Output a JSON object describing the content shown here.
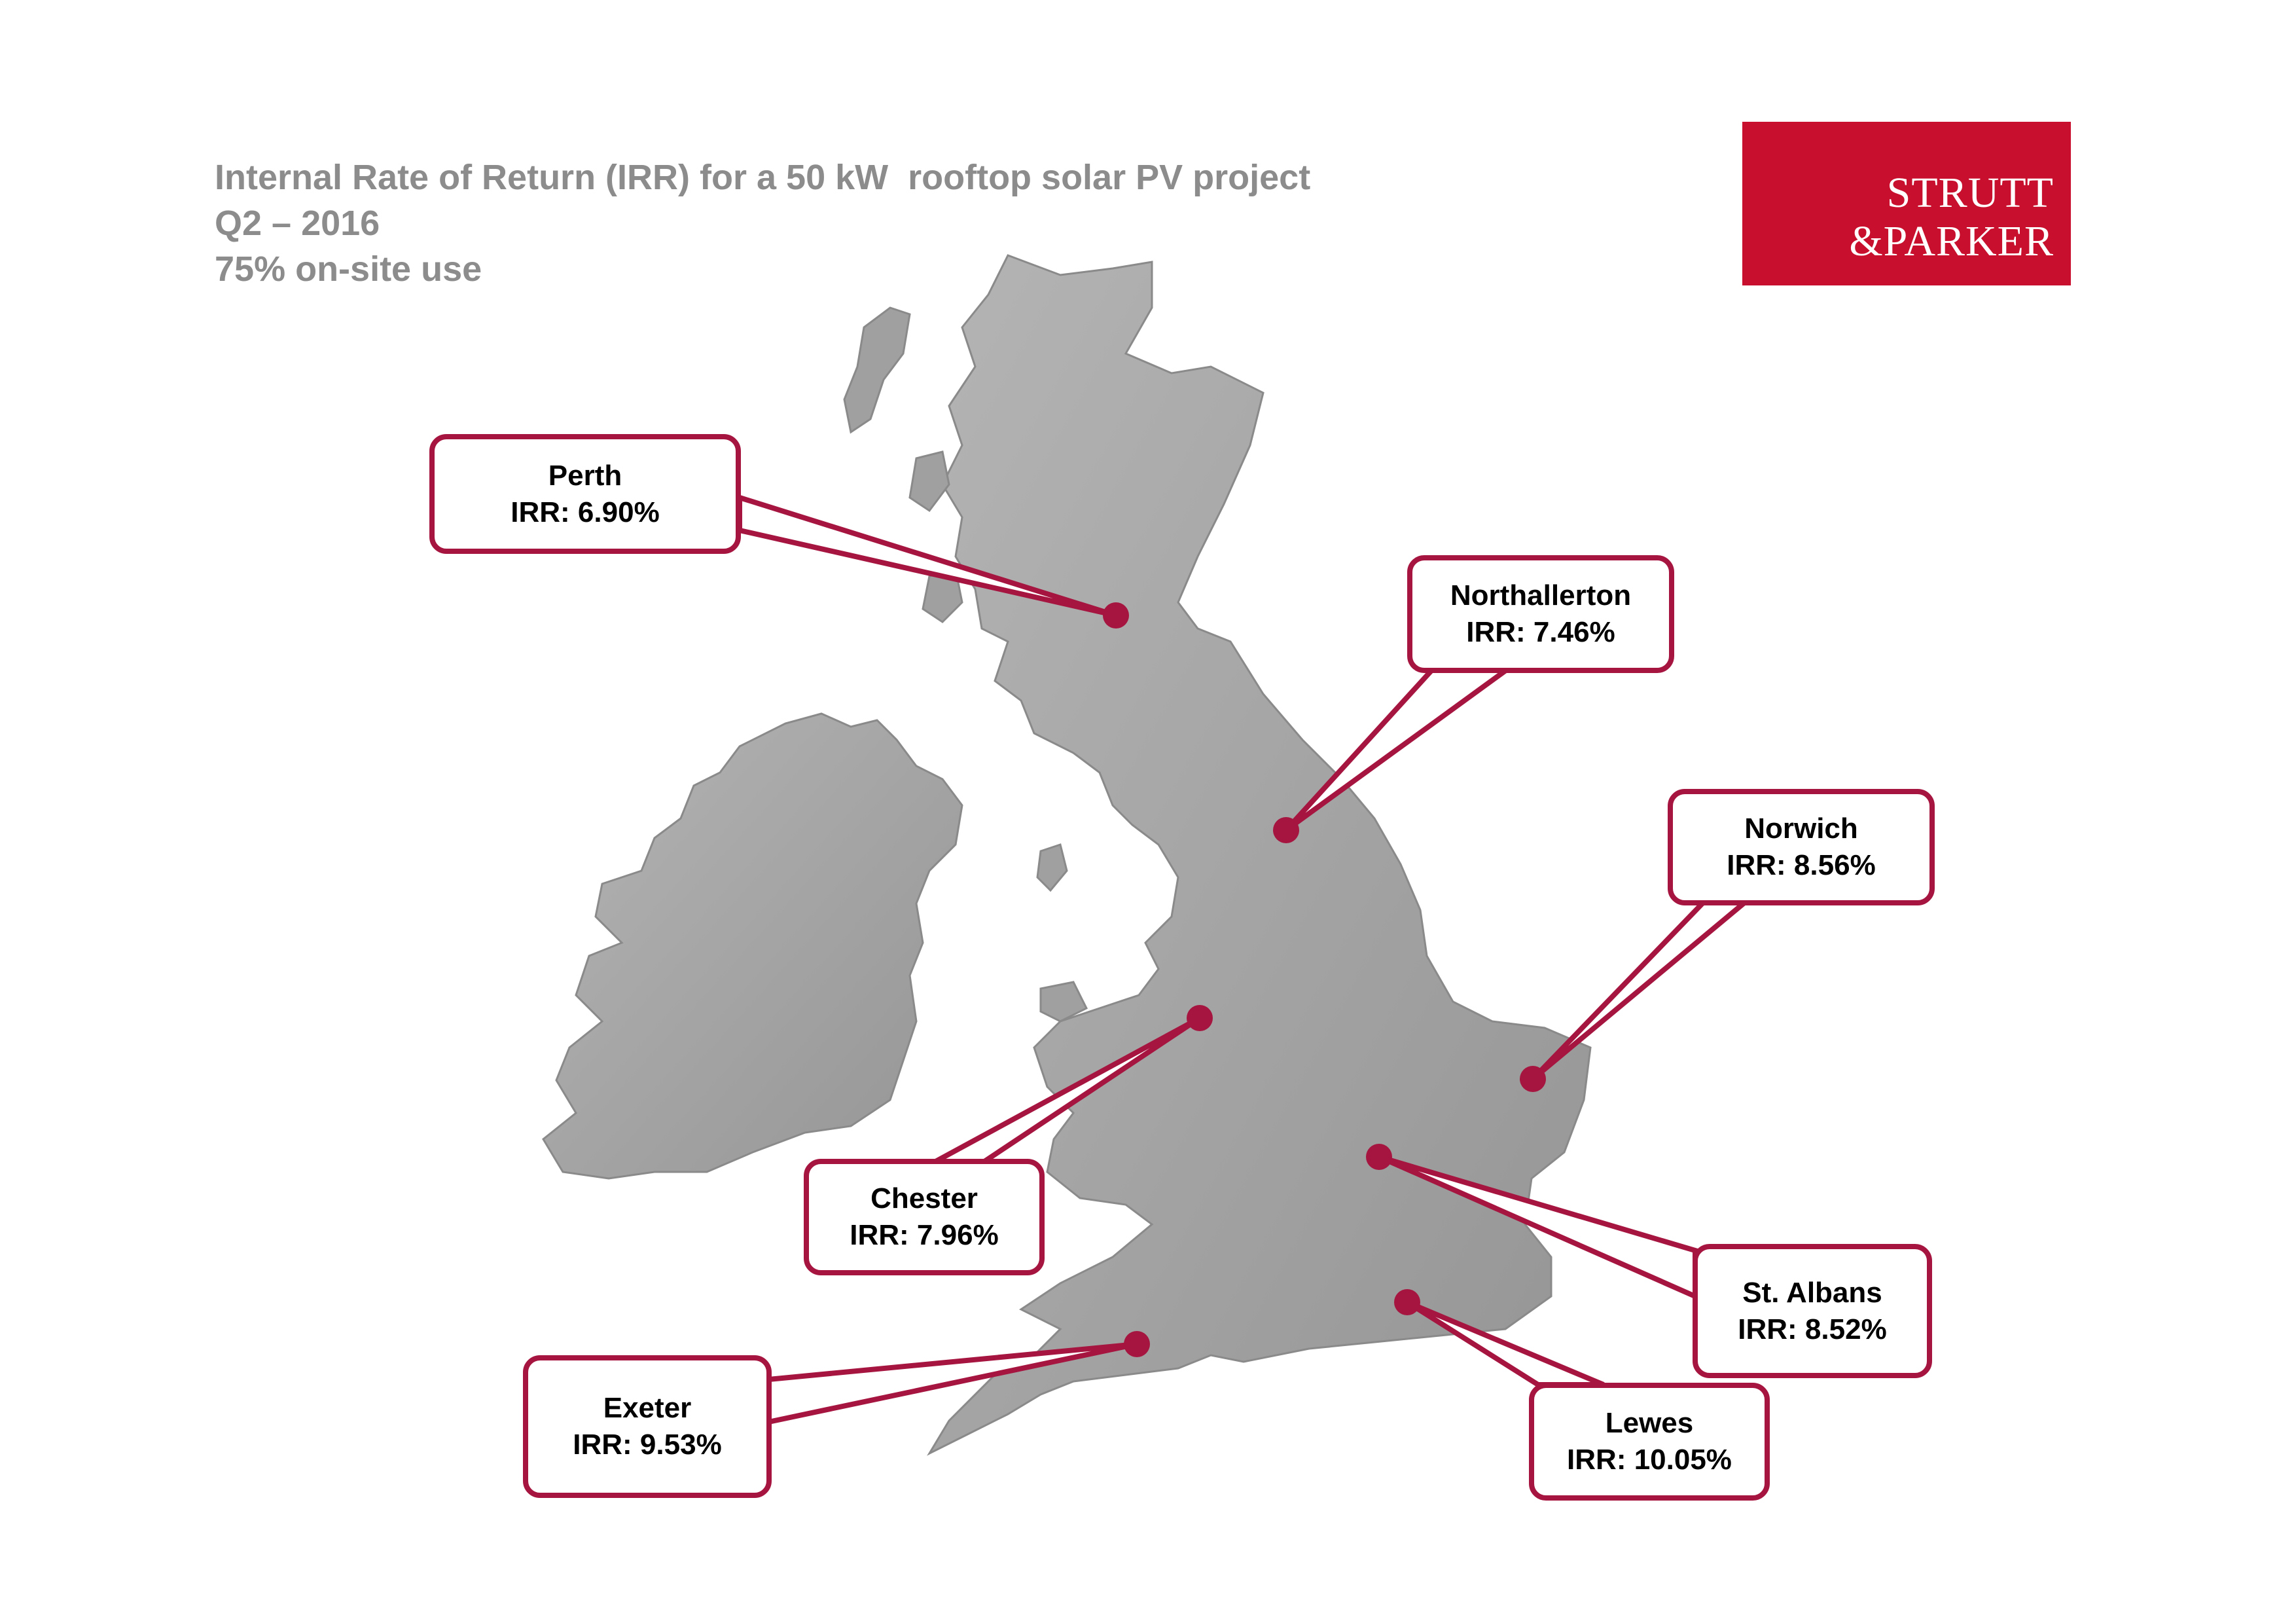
{
  "title": {
    "line1": "Internal Rate of Return (IRR) for a 50 kW  rooftop solar PV project",
    "line2": "Q2 – 2016",
    "line3": "75% on-site use"
  },
  "logo": {
    "line1": "STRUTT",
    "line2": "&PARKER",
    "color": "#c8102e"
  },
  "accent_color": "#a6153f",
  "land_color": "#a3a3a3",
  "locations": [
    {
      "id": "perth",
      "name": "Perth",
      "irr": "IRR: 6.90%"
    },
    {
      "id": "northallerton",
      "name": "Northallerton",
      "irr": "IRR: 7.46%"
    },
    {
      "id": "norwich",
      "name": "Norwich",
      "irr": "IRR: 8.56%"
    },
    {
      "id": "chester",
      "name": "Chester",
      "irr": "IRR: 7.96%"
    },
    {
      "id": "st-albans",
      "name": "St. Albans",
      "irr": "IRR: 8.52%"
    },
    {
      "id": "exeter",
      "name": "Exeter",
      "irr": "IRR: 9.53%"
    },
    {
      "id": "lewes",
      "name": "Lewes",
      "irr": "IRR: 10.05%"
    }
  ]
}
